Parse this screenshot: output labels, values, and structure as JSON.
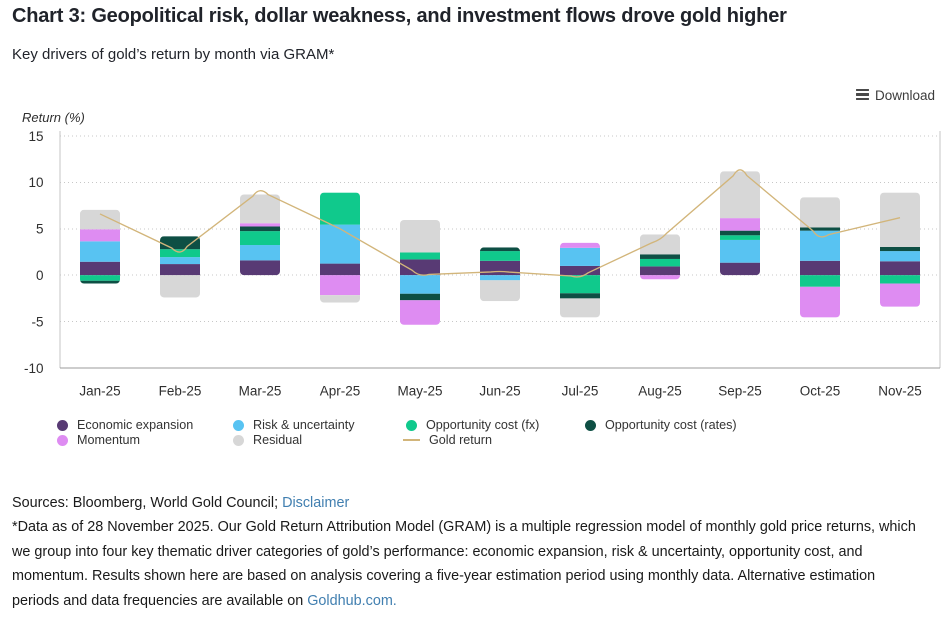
{
  "header": {
    "title": "Chart 3: Geopolitical risk, dollar weakness, and investment flows drove gold higher",
    "subtitle": "Key drivers of gold’s return by month via GRAM*"
  },
  "toolbar": {
    "download_label": "Download"
  },
  "chart_data": {
    "type": "bar-stacked-with-line",
    "title": "Key drivers of gold’s return by month via GRAM*",
    "ylabel": "Return (%)",
    "ylim": [
      -10,
      15
    ],
    "yticks": [
      15,
      10,
      5,
      0,
      -5,
      -10
    ],
    "grid": "dotted horizontal",
    "legend_position": "bottom-left",
    "categories": [
      "Jan-25",
      "Feb-25",
      "Mar-25",
      "Apr-25",
      "May-25",
      "Jun-25",
      "Jul-25",
      "Aug-25",
      "Sep-25",
      "Oct-25",
      "Nov-25"
    ],
    "series": [
      {
        "name": "Economic expansion",
        "color": "#583a74",
        "values": [
          1.45,
          1.2,
          1.6,
          1.25,
          1.7,
          1.55,
          1.0,
          0.95,
          1.35,
          1.55,
          1.5
        ]
      },
      {
        "name": "Risk & uncertainty",
        "color": "#58c3f2",
        "values": [
          2.2,
          0.75,
          1.65,
          4.2,
          -2.0,
          -0.55,
          1.95,
          0,
          2.45,
          3.25,
          1.1
        ]
      },
      {
        "name": "Opportunity cost (fx)",
        "color": "#10c98c",
        "values": [
          -0.6,
          0.85,
          1.5,
          3.45,
          0.75,
          1.05,
          -1.95,
          0.8,
          0.5,
          -1.25,
          -0.9
        ]
      },
      {
        "name": "Opportunity cost (rates)",
        "color": "#0e4f44",
        "values": [
          -0.3,
          1.4,
          0.5,
          0,
          -0.7,
          0.4,
          -0.55,
          0.5,
          0.5,
          0.35,
          0.45
        ]
      },
      {
        "name": "Momentum",
        "color": "#de8cf2",
        "values": [
          1.3,
          0,
          0.35,
          -2.15,
          -2.65,
          0,
          0.55,
          -0.45,
          1.35,
          -3.3,
          -2.5
        ]
      },
      {
        "name": "Residual",
        "color": "#d7d7d7",
        "values": [
          2.1,
          -2.4,
          3.1,
          -0.8,
          3.5,
          -2.25,
          -2.05,
          2.15,
          5.05,
          3.25,
          5.85
        ]
      }
    ],
    "line": {
      "name": "Gold return",
      "color": "#d2b57a",
      "values": [
        6.6,
        2.5,
        9.1,
        5.0,
        0.05,
        0.4,
        -0.15,
        3.9,
        11.35,
        4.15,
        6.2
      ]
    }
  },
  "footer": {
    "sources_text": "Sources: Bloomberg, World Gold Council; ",
    "disclaimer_label": "Disclaimer",
    "footnote_lines": [
      "*Data as of 28 November 2025. Our Gold Return Attribution Model (GRAM) is a multiple regression model of monthly gold price returns, which",
      "we group into four key thematic driver categories of gold’s performance: economic expansion, risk & uncertainty, opportunity cost, and",
      "momentum. Results shown here are based on analysis covering a five-year estimation period using monthly data. Alternative estimation",
      "periods and data frequencies are available on "
    ],
    "goldhub_label": "Goldhub.com."
  }
}
